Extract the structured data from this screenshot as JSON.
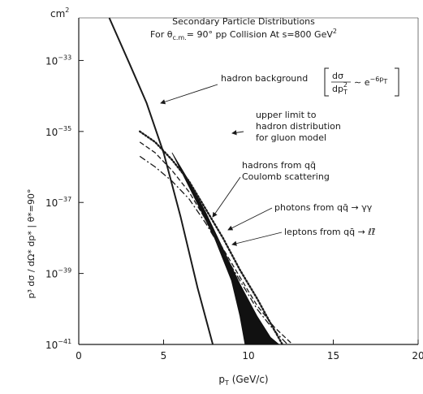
{
  "chart_data": {
    "type": "line",
    "title": {
      "line1": "Secondary Particle Distributions",
      "line2_prefix": "For θ",
      "line2_sub": "c.m.",
      "line2_mid": "= 90° pp Collision At s=800 GeV",
      "line2_sup": "2"
    },
    "xlabel": {
      "main": "p",
      "sub": "T",
      "rest": " (GeV/c)"
    },
    "ylabel": "p³ dσ / dΩ* dp* | θ*=90°",
    "y_unit": {
      "base": "cm",
      "exp": "2"
    },
    "xlim": [
      0,
      20
    ],
    "ylim_log10": [
      -41,
      -31.8
    ],
    "x_ticks": [
      "0",
      "5",
      "10",
      "15",
      "20"
    ],
    "y_ticks": [
      {
        "base": "10",
        "exp": "−33",
        "value": -33
      },
      {
        "base": "10",
        "exp": "−35",
        "value": -35
      },
      {
        "base": "10",
        "exp": "−37",
        "value": -37
      },
      {
        "base": "10",
        "exp": "−39",
        "value": -39
      },
      {
        "base": "10",
        "exp": "−41",
        "value": -41
      }
    ],
    "series": [
      {
        "key": "hadron_background",
        "style": "solid",
        "x": [
          1.8,
          3.0,
          4.0,
          5.0,
          6.0,
          7.0,
          7.9
        ],
        "log10_y": [
          -31.8,
          -33.1,
          -34.2,
          -35.6,
          -37.4,
          -39.4,
          -41
        ]
      },
      {
        "key": "hadrons_qq_band",
        "style": "filled",
        "upper": {
          "x": [
            5.5,
            6.5,
            7.5,
            8.5,
            9.5,
            10.5,
            11.3,
            11.8
          ],
          "log10_y": [
            -35.6,
            -36.4,
            -37.3,
            -38.3,
            -39.3,
            -40.2,
            -40.8,
            -41
          ]
        },
        "lower": {
          "x": [
            8.0,
            9.0,
            9.5,
            9.8
          ],
          "log10_y": [
            -38.0,
            -39.2,
            -40.2,
            -41
          ]
        }
      },
      {
        "key": "upper_limit_gluon",
        "style": "dotted",
        "x": [
          3.6,
          4.5,
          5.5,
          6.5,
          7.5,
          8.5,
          9.5,
          10.5,
          11.3,
          12.0
        ],
        "log10_y": [
          -35.0,
          -35.3,
          -35.8,
          -36.4,
          -37.2,
          -38.0,
          -38.9,
          -39.7,
          -40.4,
          -41
        ]
      },
      {
        "key": "photons_qq_gg",
        "style": "dashed",
        "x": [
          3.6,
          4.5,
          5.5,
          6.5,
          7.5,
          8.5,
          9.5,
          10.5,
          11.5,
          12.6
        ],
        "log10_y": [
          -35.3,
          -35.6,
          -36.1,
          -36.7,
          -37.5,
          -38.3,
          -39.1,
          -39.9,
          -40.5,
          -41
        ]
      },
      {
        "key": "leptons_qq_ll",
        "style": "dash-dot",
        "x": [
          3.6,
          4.5,
          5.5,
          6.5,
          7.5,
          8.5,
          9.5,
          10.5,
          11.5,
          12.3
        ],
        "log10_y": [
          -35.7,
          -36.0,
          -36.4,
          -36.9,
          -37.6,
          -38.4,
          -39.2,
          -40.0,
          -40.6,
          -41
        ]
      }
    ],
    "annotations": {
      "hadron_background": {
        "text": "hadron background",
        "formula_sym": "dσ",
        "formula_den": "dp",
        "formula_den_sub": "T",
        "formula_den_sup": "2",
        "formula_tail": "∼ e",
        "formula_exp": "−6p",
        "formula_exp_sub": "T"
      },
      "upper_limit": [
        "upper limit to",
        "hadron distribution",
        "for gluon model"
      ],
      "hadrons_qq": [
        "hadrons from qq̄",
        "Coulomb scattering"
      ],
      "photons": "photons from qq̄ → γγ",
      "leptons": "leptons from qq̄ → ℓℓ̄"
    },
    "grid": false
  }
}
